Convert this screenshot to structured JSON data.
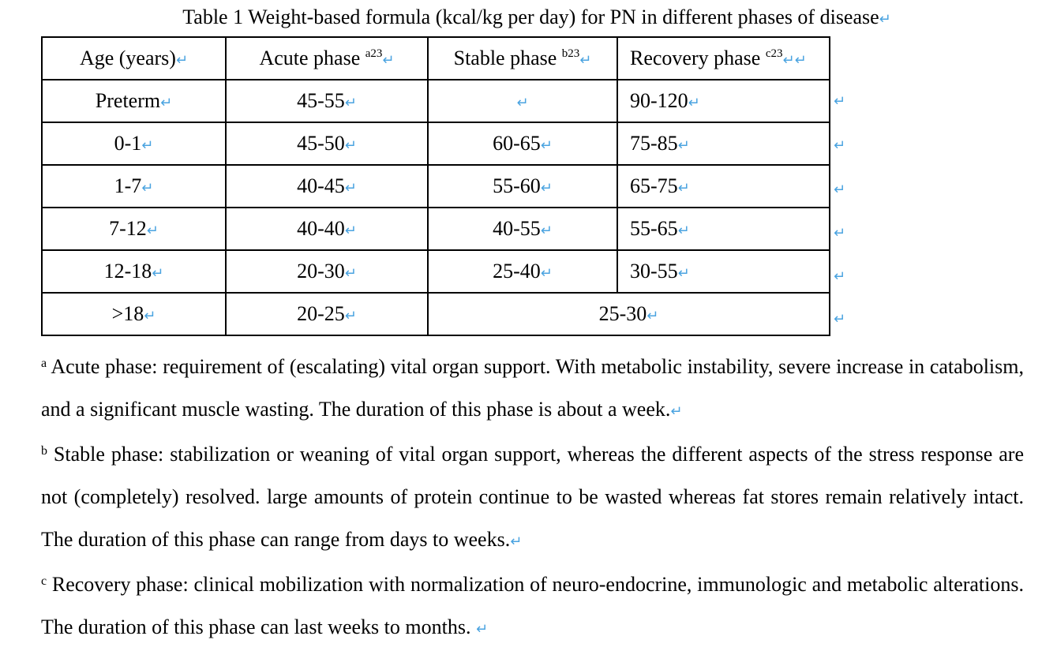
{
  "caption": "Table 1 Weight-based formula (kcal/kg per day) for PN in different phases of disease",
  "return_mark": "↵",
  "colors": {
    "paragraph_mark": "#4aa3e0"
  },
  "table": {
    "headers": [
      {
        "label": "Age (years)",
        "sup": ""
      },
      {
        "label": "Acute phase ",
        "sup": "a23"
      },
      {
        "label": "Stable phase ",
        "sup": "b23"
      },
      {
        "label": "Recovery phase ",
        "sup": "c23"
      }
    ],
    "rows": [
      [
        "Preterm",
        "45-55",
        "",
        "90-120"
      ],
      [
        "0-1",
        "45-50",
        "60-65",
        "75-85"
      ],
      [
        "1-7",
        "40-45",
        "55-60",
        "65-75"
      ],
      [
        "7-12",
        "40-40",
        "40-55",
        "55-65"
      ],
      [
        "12-18",
        "20-30",
        "25-40",
        "30-55"
      ],
      [
        ">18",
        "20-25",
        "25-30"
      ]
    ]
  },
  "footnotes": [
    {
      "sup": "a",
      "text": " Acute phase: requirement of (escalating) vital organ support. With metabolic instability, severe increase in catabolism, and a significant muscle wasting. The duration of this phase is about a week."
    },
    {
      "sup": "b",
      "text": " Stable phase: stabilization or weaning of vital organ support, whereas the different aspects of the stress response are not (completely) resolved. large amounts of protein continue to be wasted whereas fat stores remain relatively intact. The duration of this phase can range from days to weeks."
    },
    {
      "sup": "c",
      "text": " Recovery phase: clinical mobilization with normalization of neuro-endocrine, immunologic and metabolic alterations. The duration of this phase can last weeks to months.  "
    }
  ]
}
